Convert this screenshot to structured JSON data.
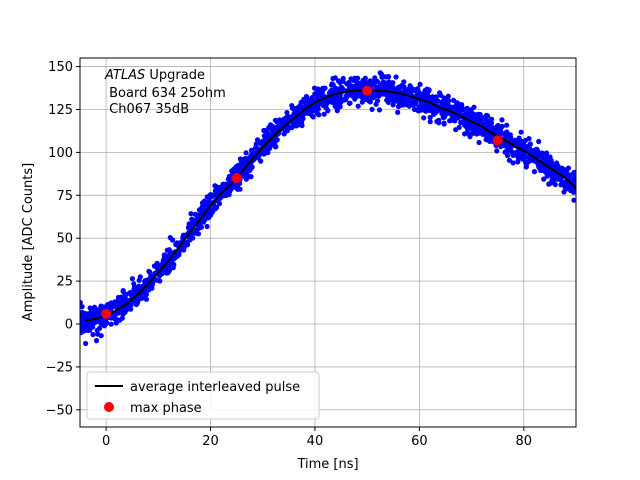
{
  "chart_data": {
    "type": "scatter",
    "title": "",
    "xlabel": "Time [ns]",
    "ylabel": "Amplitude [ADC Counts]",
    "xlim": [
      -5,
      90
    ],
    "ylim": [
      -60,
      155
    ],
    "xticks": [
      0,
      20,
      40,
      60,
      80
    ],
    "yticks": [
      -50,
      -25,
      0,
      25,
      50,
      75,
      100,
      125,
      150
    ],
    "grid": true,
    "legend_position": "lower-left",
    "annotation": {
      "line1_italic": "ATLAS",
      "line1_rest": " Upgrade",
      "line2": " Board 634 25ohm",
      "line3": " Ch067 35dB"
    },
    "series": [
      {
        "name": "average interleaved pulse",
        "kind": "line",
        "color": "#000000",
        "x": [
          -4,
          -2,
          0,
          2,
          4,
          6,
          8,
          10,
          12,
          14,
          16,
          18,
          20,
          22,
          24,
          26,
          28,
          30,
          32,
          34,
          36,
          38,
          40,
          42,
          44,
          46,
          48,
          50,
          52,
          54,
          56,
          58,
          60,
          62,
          64,
          66,
          68,
          70,
          72,
          74,
          76,
          78,
          80,
          82,
          84,
          86,
          88,
          90
        ],
        "y": [
          2,
          3,
          5,
          8,
          12,
          17,
          23,
          30,
          37,
          45,
          53,
          61,
          69,
          76,
          82,
          89,
          96,
          103,
          109,
          115,
          120,
          125,
          129,
          132,
          134,
          135.5,
          136,
          136,
          136,
          135.5,
          134.5,
          133,
          131,
          129,
          126,
          124,
          121,
          118,
          115,
          111,
          108,
          104,
          101,
          97,
          93,
          89,
          85,
          79
        ]
      },
      {
        "name": "",
        "kind": "scatter-noise",
        "color": "#0000ff",
        "x_range": [
          -5,
          90
        ],
        "noise_amplitude": 7,
        "count": 1900
      },
      {
        "name": "max phase",
        "kind": "scatter",
        "color": "#ff0000",
        "x": [
          0,
          25,
          50,
          75
        ],
        "y": [
          6,
          85,
          136,
          107
        ]
      }
    ]
  }
}
